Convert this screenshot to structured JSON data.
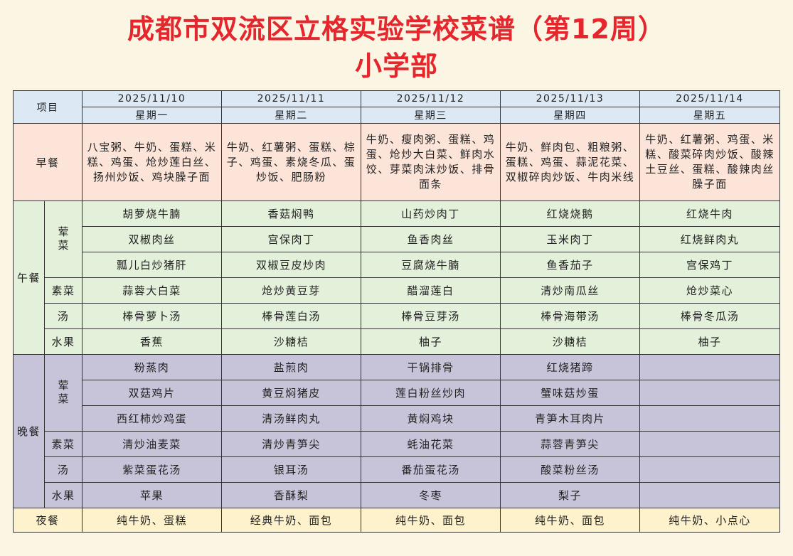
{
  "title": "成都市双流区立格实验学校菜谱（第12周）",
  "subtitle": "小学部",
  "header": {
    "item_label": "项目",
    "dates": [
      "2025/11/10",
      "2025/11/11",
      "2025/11/12",
      "2025/11/13",
      "2025/11/14"
    ],
    "weekdays": [
      "星期一",
      "星期二",
      "星期三",
      "星期四",
      "星期五"
    ]
  },
  "breakfast": {
    "label": "早餐",
    "days": [
      "八宝粥、牛奶、蛋糕、米糕、鸡蛋、炝炒莲白丝、扬州炒饭、鸡块臊子面",
      "牛奶、红薯粥、蛋糕、棕子、鸡蛋、素烧冬瓜、蛋炒饭、肥肠粉",
      "牛奶、瘦肉粥、蛋糕、鸡蛋、炝炒大白菜、鲜肉水饺、芽菜肉沫炒饭、排骨面条",
      "牛奶、鲜肉包、粗粮粥、蛋糕、鸡蛋、蒜泥花菜、双椒碎肉炒饭、牛肉米线",
      "牛奶、红薯粥、鸡蛋、米糕、酸菜碎肉炒饭、酸辣土豆丝、蛋糕、酸辣肉丝臊子面"
    ]
  },
  "lunch": {
    "label": "午餐",
    "rows": [
      {
        "category": "荤菜",
        "items": [
          "胡萝烧牛腩",
          "香菇焖鸭",
          "山药炒肉丁",
          "红烧烧鹅",
          "红烧牛肉"
        ]
      },
      {
        "category": "荤菜",
        "items": [
          "双椒肉丝",
          "宫保肉丁",
          "鱼香肉丝",
          "玉米肉丁",
          "红烧鲜肉丸"
        ]
      },
      {
        "category": "荤菜",
        "items": [
          "瓢儿白炒猪肝",
          "双椒豆皮炒肉",
          "豆腐烧牛腩",
          "鱼香茄子",
          "宫保鸡丁"
        ]
      },
      {
        "category": "素菜",
        "items": [
          "蒜蓉大白菜",
          "炝炒黄豆芽",
          "醋溜莲白",
          "清炒南瓜丝",
          "炝炒菜心"
        ]
      },
      {
        "category": "汤",
        "items": [
          "棒骨萝卜汤",
          "棒骨莲白汤",
          "棒骨豆芽汤",
          "棒骨海带汤",
          "棒骨冬瓜汤"
        ]
      },
      {
        "category": "水果",
        "items": [
          "香蕉",
          "沙糖桔",
          "柚子",
          "沙糖桔",
          "柚子"
        ]
      }
    ]
  },
  "dinner": {
    "label": "晚餐",
    "rows": [
      {
        "category": "荤菜",
        "items": [
          "粉蒸肉",
          "盐煎肉",
          "干锅排骨",
          "红烧猪蹄",
          ""
        ]
      },
      {
        "category": "荤菜",
        "items": [
          "双菇鸡片",
          "黄豆焖猪皮",
          "莲白粉丝炒肉",
          "蟹味菇炒蛋",
          ""
        ]
      },
      {
        "category": "荤菜",
        "items": [
          "西红柿炒鸡蛋",
          "清汤鲜肉丸",
          "黄焖鸡块",
          "青笋木耳肉片",
          ""
        ]
      },
      {
        "category": "素菜",
        "items": [
          "清炒油麦菜",
          "清炒青笋尖",
          "蚝油花菜",
          "蒜蓉青笋尖",
          ""
        ]
      },
      {
        "category": "汤",
        "items": [
          "紫菜蛋花汤",
          "银耳汤",
          "番茄蛋花汤",
          "酸菜粉丝汤",
          ""
        ]
      },
      {
        "category": "水果",
        "items": [
          "苹果",
          "香酥梨",
          "冬枣",
          "梨子",
          ""
        ]
      }
    ]
  },
  "night_snack": {
    "label": "夜餐",
    "days": [
      "纯牛奶、蛋糕",
      "经典牛奶、面包",
      "纯牛奶、面包",
      "纯牛奶、面包",
      "纯牛奶、小点心"
    ]
  }
}
